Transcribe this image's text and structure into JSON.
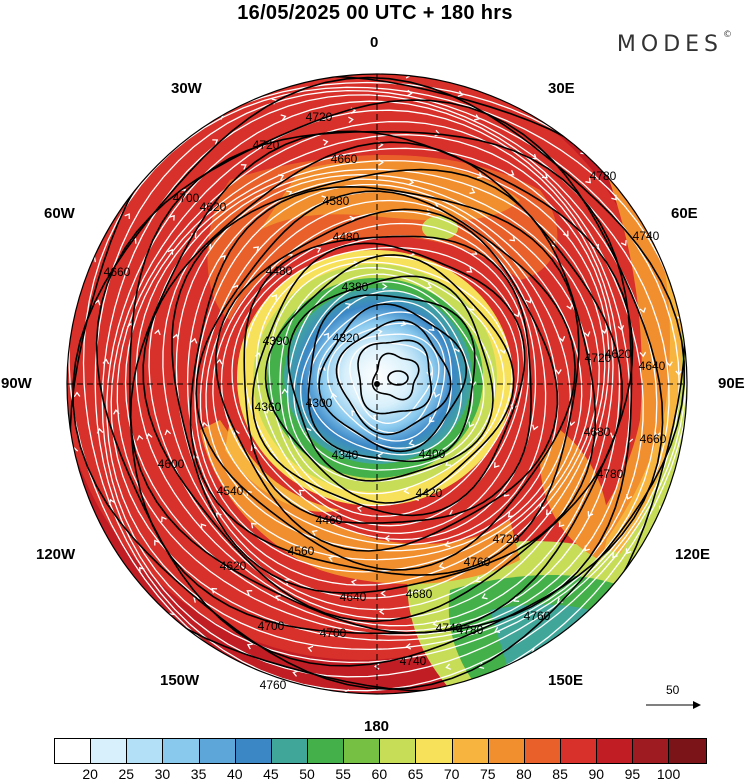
{
  "header": {
    "title": "16/05/2025  00 UTC  + 180 hrs",
    "brand": "MODES",
    "brand_mark": "©"
  },
  "map": {
    "projection": "north-polar-stereographic",
    "longitude_labels": {
      "top": "0",
      "top_right": "30E",
      "right_upper": "60E",
      "right": "90E",
      "right_lower": "120E",
      "bottom_right": "150E",
      "bottom": "180",
      "bottom_left": "150W",
      "left_lower": "120W",
      "left": "90W",
      "left_upper": "60W",
      "top_left": "30W"
    },
    "contour_labels": [
      "4720",
      "4720",
      "4660",
      "4700",
      "4620",
      "4580",
      "4780",
      "4740",
      "4480",
      "4480",
      "4380",
      "4320",
      "4300",
      "4340",
      "4360",
      "4390",
      "4420",
      "4400",
      "4460",
      "4540",
      "4560",
      "4600",
      "4620",
      "4640",
      "4680",
      "4700",
      "4720",
      "4740",
      "4760",
      "4780",
      "4660",
      "4640",
      "4620",
      "4720",
      "4680",
      "4760",
      "4780",
      "4740",
      "4760",
      "4700",
      "4660"
    ],
    "shading_field": "wind speed",
    "streamline_color": "#ffffff",
    "contour_color": "#000000"
  },
  "scale_vector": {
    "label": "50"
  },
  "colorbar": {
    "colors": [
      "#ffffff",
      "#d8f0fb",
      "#b3e0f7",
      "#89c9ee",
      "#5da6da",
      "#3b87c6",
      "#41a69a",
      "#43b049",
      "#76c043",
      "#c7dd58",
      "#f7e15a",
      "#f7b43f",
      "#f18e2d",
      "#e9602a",
      "#d8302a",
      "#c01d24",
      "#9d1b21",
      "#7a1418"
    ],
    "tick_labels": [
      "20",
      "25",
      "30",
      "35",
      "40",
      "45",
      "50",
      "55",
      "60",
      "65",
      "70",
      "75",
      "80",
      "85",
      "90",
      "95",
      "100"
    ]
  }
}
